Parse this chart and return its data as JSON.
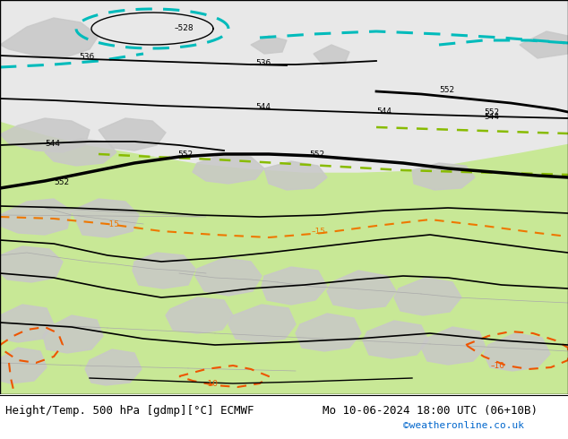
{
  "title_left": "Height/Temp. 500 hPa [gdmp][°C] ECMWF",
  "title_right": "Mo 10-06-2024 18:00 UTC (06+10B)",
  "copyright": "©weatheronline.co.uk",
  "footer_left_color": "#000000",
  "footer_right_color": "#000000",
  "copyright_color": "#0066cc",
  "title_fontsize": 9,
  "copyright_fontsize": 8,
  "bg_green": "#c8e896",
  "bg_gray": "#d8d8d8",
  "bg_light_gray": "#e8e8e8",
  "land_gray": "#c8c8c8",
  "cyan_color": "#00bbbb",
  "yellow_green": "#88bb00",
  "orange_color": "#ee7700",
  "red_orange": "#ee5500"
}
